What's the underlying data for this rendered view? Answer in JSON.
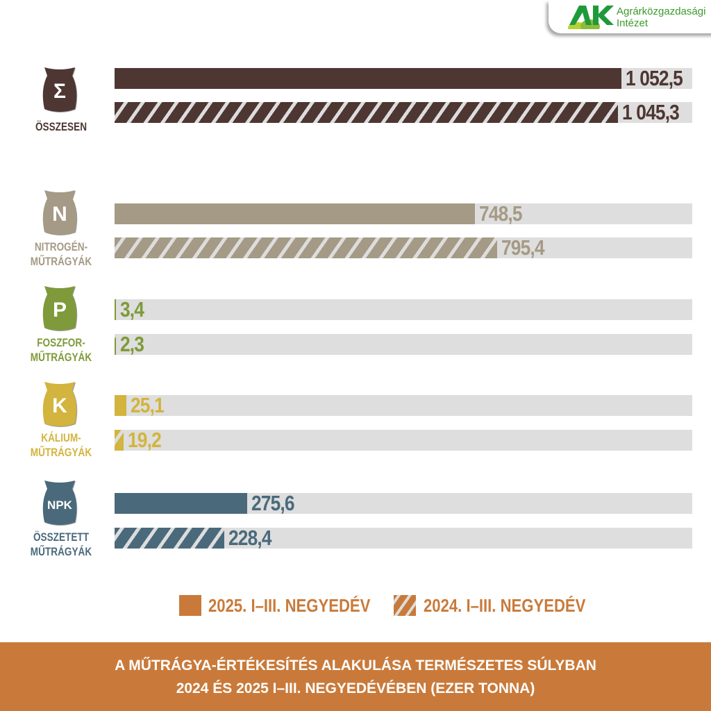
{
  "logo": {
    "mark": "AKI",
    "line1": "Agrárközgazdasági",
    "line2": "Intézet"
  },
  "chart_data": {
    "type": "bar",
    "orientation": "horizontal",
    "xlim": [
      0,
      1200
    ],
    "series": [
      {
        "name": "2025. I–III. NEGYEDÉV",
        "style": "solid"
      },
      {
        "name": "2024. I–III. NEGYEDÉV",
        "style": "striped"
      }
    ],
    "categories": [
      {
        "symbol": "Σ",
        "label": [
          "ÖSSZESEN"
        ],
        "color": "#4e3632",
        "values": [
          1052.5,
          1045.3
        ],
        "value_labels": [
          "1 052,5",
          "1 045,3"
        ]
      },
      {
        "symbol": "N",
        "label": [
          "NITROGÉN-",
          "MŰTRÁGYÁK"
        ],
        "color": "#a59a85",
        "values": [
          748.5,
          795.4
        ],
        "value_labels": [
          "748,5",
          "795,4"
        ]
      },
      {
        "symbol": "P",
        "label": [
          "FOSZFOR-",
          "MŰTRÁGYÁK"
        ],
        "color": "#7f9a3a",
        "values": [
          3.4,
          2.3
        ],
        "value_labels": [
          "3,4",
          "2,3"
        ]
      },
      {
        "symbol": "K",
        "label": [
          "KÁLIUM-",
          "MŰTRÁGYÁK"
        ],
        "color": "#d2b43e",
        "values": [
          25.1,
          19.2
        ],
        "value_labels": [
          "25,1",
          "19,2"
        ]
      },
      {
        "symbol": "NPK",
        "label": [
          "ÖSSZETETT",
          "MŰTRÁGYÁK"
        ],
        "color": "#4a6a7b",
        "values": [
          275.6,
          228.4
        ],
        "value_labels": [
          "275,6",
          "228,4"
        ]
      }
    ],
    "legend": {
      "solid": "2025. I–III. NEGYEDÉV",
      "striped": "2024. I–III. NEGYEDÉV",
      "color": "#c97a3a"
    },
    "title": [
      "A MŰTRÁGYA-ÉRTÉKESÍTÉS ALAKULÁSA TERMÉSZETES SÚLYBAN",
      "2024 ÉS 2025 I–III. NEGYEDÉVÉBEN (EZER TONNA)"
    ]
  }
}
